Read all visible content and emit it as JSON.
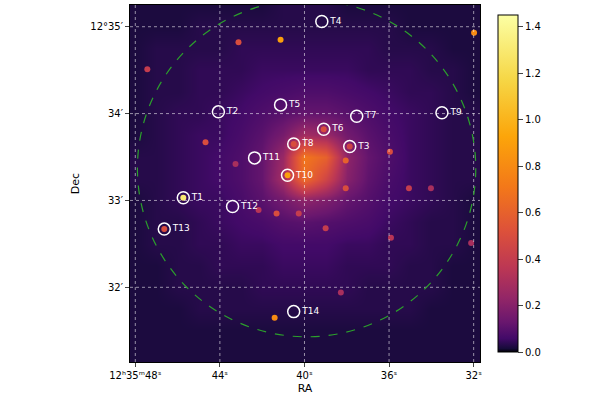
{
  "chart_data": {
    "type": "heatmap",
    "x_label": "RA",
    "y_label": "Dec",
    "x": [
      48,
      47,
      46,
      45,
      44,
      43,
      42,
      41,
      40,
      39,
      38,
      37,
      36,
      35,
      34,
      33,
      32
    ],
    "y": [
      35.25,
      35.0,
      34.75,
      34.5,
      34.25,
      34.0,
      33.75,
      33.5,
      33.25,
      33.0,
      32.75,
      32.5,
      32.25,
      32.0,
      31.75,
      31.5,
      31.25
    ],
    "cells": [
      [
        0.02,
        0.02,
        0.02,
        0.02,
        0.02,
        0.02,
        0.02,
        0.03,
        0.03,
        0.03,
        0.02,
        0.02,
        0.02,
        0.02,
        0.02,
        0.02,
        0.02
      ],
      [
        0.02,
        0.02,
        0.02,
        0.03,
        0.03,
        0.03,
        0.03,
        0.03,
        0.03,
        0.03,
        0.03,
        0.03,
        0.03,
        0.02,
        0.02,
        0.02,
        0.02
      ],
      [
        0.02,
        0.03,
        0.03,
        0.03,
        0.03,
        0.04,
        0.04,
        0.04,
        0.04,
        0.04,
        0.04,
        0.04,
        0.03,
        0.03,
        0.03,
        0.02,
        0.02
      ],
      [
        0.02,
        0.03,
        0.03,
        0.04,
        0.04,
        0.04,
        0.05,
        0.05,
        0.05,
        0.05,
        0.05,
        0.04,
        0.04,
        0.04,
        0.03,
        0.03,
        0.02
      ],
      [
        0.02,
        0.03,
        0.03,
        0.04,
        0.04,
        0.05,
        0.06,
        0.07,
        0.08,
        0.08,
        0.07,
        0.06,
        0.05,
        0.04,
        0.04,
        0.03,
        0.02
      ],
      [
        0.02,
        0.03,
        0.04,
        0.04,
        0.05,
        0.06,
        0.08,
        0.1,
        0.12,
        0.12,
        0.1,
        0.08,
        0.06,
        0.05,
        0.04,
        0.03,
        0.03
      ],
      [
        0.02,
        0.03,
        0.04,
        0.05,
        0.05,
        0.07,
        0.1,
        0.16,
        0.28,
        0.25,
        0.15,
        0.1,
        0.07,
        0.05,
        0.04,
        0.03,
        0.03
      ],
      [
        0.03,
        0.03,
        0.04,
        0.05,
        0.06,
        0.08,
        0.12,
        0.25,
        0.7,
        0.6,
        0.22,
        0.12,
        0.08,
        0.05,
        0.04,
        0.03,
        0.03
      ],
      [
        0.03,
        0.03,
        0.04,
        0.05,
        0.06,
        0.08,
        0.12,
        0.28,
        0.65,
        0.45,
        0.2,
        0.11,
        0.07,
        0.05,
        0.04,
        0.03,
        0.03
      ],
      [
        0.02,
        0.03,
        0.04,
        0.05,
        0.05,
        0.07,
        0.1,
        0.15,
        0.22,
        0.18,
        0.12,
        0.09,
        0.06,
        0.05,
        0.04,
        0.03,
        0.02
      ],
      [
        0.02,
        0.03,
        0.03,
        0.04,
        0.05,
        0.06,
        0.07,
        0.09,
        0.1,
        0.09,
        0.08,
        0.07,
        0.05,
        0.04,
        0.03,
        0.03,
        0.02
      ],
      [
        0.02,
        0.03,
        0.03,
        0.04,
        0.04,
        0.05,
        0.05,
        0.06,
        0.06,
        0.06,
        0.05,
        0.05,
        0.04,
        0.04,
        0.03,
        0.03,
        0.02
      ],
      [
        0.02,
        0.02,
        0.03,
        0.03,
        0.04,
        0.04,
        0.04,
        0.05,
        0.05,
        0.05,
        0.04,
        0.04,
        0.04,
        0.03,
        0.03,
        0.02,
        0.02
      ],
      [
        0.02,
        0.02,
        0.03,
        0.03,
        0.03,
        0.03,
        0.04,
        0.04,
        0.04,
        0.04,
        0.04,
        0.03,
        0.03,
        0.03,
        0.03,
        0.02,
        0.02
      ],
      [
        0.02,
        0.02,
        0.02,
        0.03,
        0.03,
        0.03,
        0.03,
        0.03,
        0.03,
        0.03,
        0.03,
        0.03,
        0.03,
        0.03,
        0.02,
        0.02,
        0.02
      ],
      [
        0.02,
        0.02,
        0.02,
        0.02,
        0.02,
        0.02,
        0.02,
        0.02,
        0.02,
        0.02,
        0.02,
        0.02,
        0.02,
        0.02,
        0.02,
        0.02,
        0.02
      ],
      [
        0.02,
        0.02,
        0.02,
        0.02,
        0.02,
        0.02,
        0.02,
        0.02,
        0.02,
        0.02,
        0.02,
        0.02,
        0.02,
        0.02,
        0.02,
        0.02,
        0.02
      ]
    ],
    "xlim": [
      48.25,
      31.7
    ],
    "ylim": [
      31.14,
      35.25
    ],
    "xticks": [
      {
        "value": 48,
        "label": "12ʰ35ᵐ48ˢ"
      },
      {
        "value": 44,
        "label": "44ˢ"
      },
      {
        "value": 40,
        "label": "40ˢ"
      },
      {
        "value": 36,
        "label": "36ˢ"
      },
      {
        "value": 32,
        "label": "32ˢ"
      }
    ],
    "yticks": [
      {
        "value": 35,
        "label": "12°35′"
      },
      {
        "value": 34,
        "label": "34′"
      },
      {
        "value": 33,
        "label": "33′"
      },
      {
        "value": 32,
        "label": "32′"
      }
    ],
    "grid": true,
    "colorbar": {
      "range": [
        0,
        1.45
      ],
      "ticks": [
        {
          "value": 0,
          "label": "0.0"
        },
        0.2,
        0.4,
        0.6,
        0.8,
        {
          "value": 1,
          "label": "1.0"
        },
        1.2,
        1.4
      ]
    },
    "sources": [
      {
        "x": 45.73,
        "y": 33.03,
        "value": 1.3
      },
      {
        "x": 40.8,
        "y": 33.29,
        "value": 0.9
      },
      {
        "x": 40.51,
        "y": 33.65,
        "value": 0.5
      },
      {
        "x": 39.09,
        "y": 33.82,
        "value": 0.5
      },
      {
        "x": 37.86,
        "y": 33.62,
        "value": 0.45
      },
      {
        "x": 46.63,
        "y": 32.67,
        "value": 0.5
      },
      {
        "x": 47.43,
        "y": 34.51,
        "value": 0.4
      },
      {
        "x": 44.68,
        "y": 33.67,
        "value": 0.5
      },
      {
        "x": 41.13,
        "y": 34.85,
        "value": 0.9
      },
      {
        "x": 43.12,
        "y": 34.82,
        "value": 0.5
      },
      {
        "x": 31.98,
        "y": 34.93,
        "value": 0.8
      },
      {
        "x": 41.41,
        "y": 31.65,
        "value": 0.8
      },
      {
        "x": 35.96,
        "y": 33.56,
        "value": 0.5
      },
      {
        "x": 38.05,
        "y": 33.46,
        "value": 0.6
      },
      {
        "x": 38.05,
        "y": 33.14,
        "value": 0.5
      },
      {
        "x": 41.32,
        "y": 32.85,
        "value": 0.5
      },
      {
        "x": 40.27,
        "y": 32.85,
        "value": 0.4
      },
      {
        "x": 35.91,
        "y": 32.57,
        "value": 0.35
      },
      {
        "x": 32.12,
        "y": 32.51,
        "value": 0.3
      },
      {
        "x": 35.06,
        "y": 33.14,
        "value": 0.4
      },
      {
        "x": 39.0,
        "y": 32.68,
        "value": 0.4
      },
      {
        "x": 38.28,
        "y": 31.94,
        "value": 0.3
      },
      {
        "x": 43.26,
        "y": 33.42,
        "value": 0.3
      },
      {
        "x": 42.17,
        "y": 32.89,
        "value": 0.35
      },
      {
        "x": 34.02,
        "y": 33.14,
        "value": 0.3
      }
    ],
    "labels": [
      {
        "text": "T1",
        "x": 45.73,
        "y": 33.03
      },
      {
        "text": "T2",
        "x": 44.07,
        "y": 34.02
      },
      {
        "text": "T3",
        "x": 37.86,
        "y": 33.62
      },
      {
        "text": "T4",
        "x": 39.18,
        "y": 35.06
      },
      {
        "text": "T5",
        "x": 41.13,
        "y": 34.1
      },
      {
        "text": "T6",
        "x": 39.09,
        "y": 33.82
      },
      {
        "text": "T7",
        "x": 37.53,
        "y": 33.97
      },
      {
        "text": "T8",
        "x": 40.51,
        "y": 33.65
      },
      {
        "text": "T9",
        "x": 33.5,
        "y": 34.01
      },
      {
        "text": "T10",
        "x": 40.8,
        "y": 33.29
      },
      {
        "text": "T11",
        "x": 42.36,
        "y": 33.49
      },
      {
        "text": "T12",
        "x": 43.4,
        "y": 32.93
      },
      {
        "text": "T13",
        "x": 46.63,
        "y": 32.67
      },
      {
        "text": "T14",
        "x": 40.51,
        "y": 31.72
      }
    ],
    "region": {
      "x": 39.9,
      "y": 33.37,
      "x_radius": 8.0,
      "y_radius": 1.94,
      "color": "#2ca02c",
      "line_style": "dashed"
    }
  }
}
